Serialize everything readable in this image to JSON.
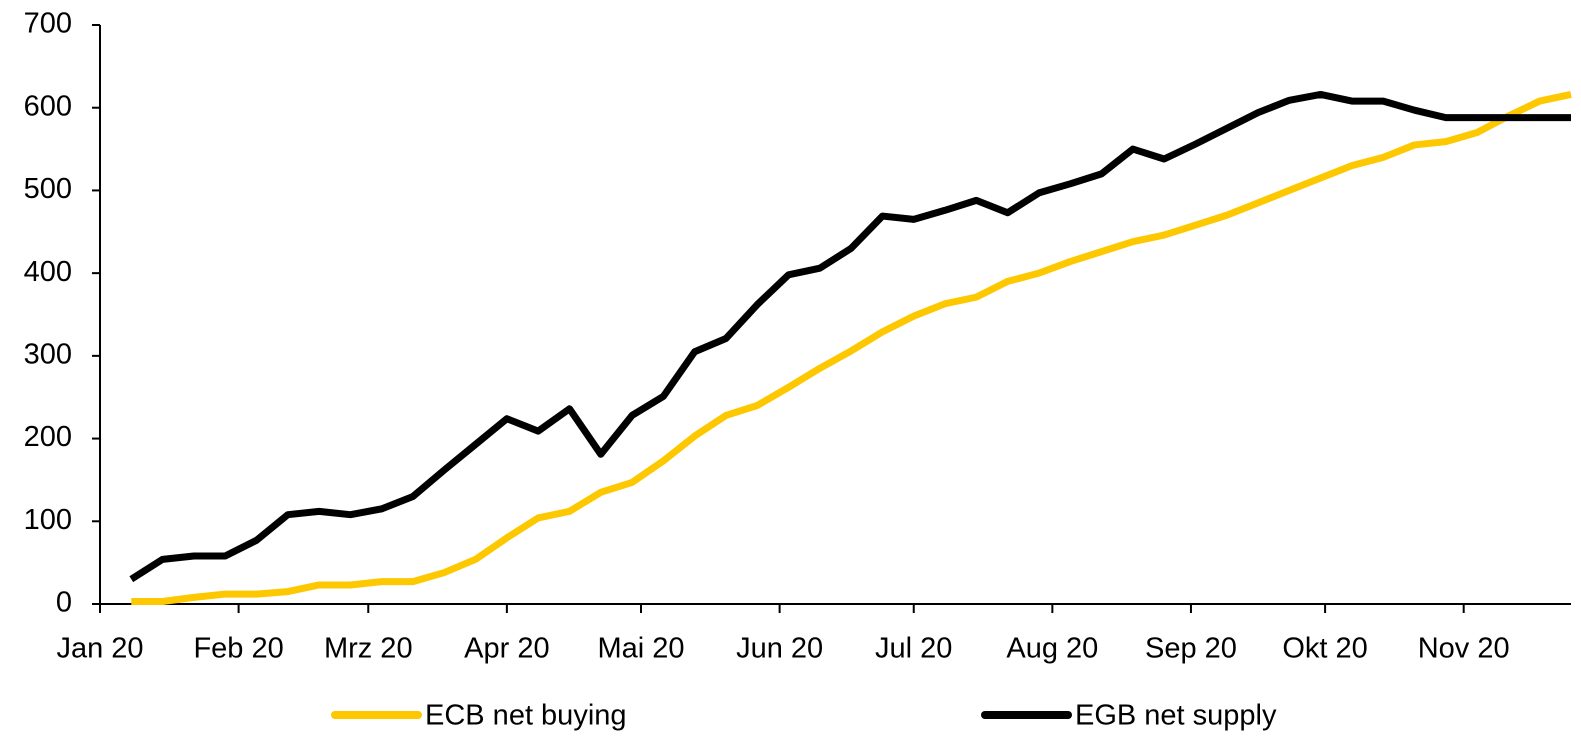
{
  "chart_data": {
    "type": "line",
    "x": [
      7,
      14,
      21,
      28,
      35,
      42,
      49,
      56,
      63,
      70,
      77,
      84,
      91,
      98,
      105,
      112,
      119,
      126,
      133,
      140,
      147,
      154,
      161,
      168,
      175,
      182,
      189,
      196,
      203,
      210,
      217,
      224,
      231,
      238,
      245,
      252,
      259,
      266,
      273,
      280,
      287,
      294,
      301,
      308,
      315,
      322,
      329
    ],
    "series": [
      {
        "name": "ECB net buying",
        "color": "#fdc800",
        "values": [
          3,
          3,
          8,
          12,
          12,
          15,
          23,
          23,
          27,
          27,
          38,
          54,
          80,
          104,
          112,
          135,
          147,
          173,
          203,
          228,
          240,
          262,
          285,
          306,
          329,
          348,
          363,
          371,
          390,
          400,
          414,
          426,
          438,
          446,
          458,
          470,
          485,
          500,
          515,
          530,
          540,
          555,
          559,
          570,
          590,
          608,
          616
        ]
      },
      {
        "name": "EGB net supply",
        "color": "#000000",
        "values": [
          30,
          54,
          58,
          58,
          77,
          108,
          112,
          108,
          115,
          130,
          162,
          193,
          224,
          209,
          236,
          181,
          228,
          251,
          305,
          321,
          362,
          398,
          406,
          430,
          469,
          465,
          476,
          488,
          473,
          497,
          508,
          520,
          550,
          538,
          556,
          575,
          594,
          609,
          616,
          608,
          608,
          597,
          588,
          588,
          588,
          588,
          588
        ]
      }
    ],
    "xlim": [
      0,
      329
    ],
    "xticks": [
      {
        "value": 0,
        "label": "Jan 20"
      },
      {
        "value": 31,
        "label": "Feb 20"
      },
      {
        "value": 60,
        "label": "Mrz 20"
      },
      {
        "value": 91,
        "label": "Apr 20"
      },
      {
        "value": 121,
        "label": "Mai 20"
      },
      {
        "value": 152,
        "label": "Jun 20"
      },
      {
        "value": 182,
        "label": "Jul 20"
      },
      {
        "value": 213,
        "label": "Aug 20"
      },
      {
        "value": 244,
        "label": "Sep 20"
      },
      {
        "value": 274,
        "label": "Okt 20"
      },
      {
        "value": 305,
        "label": "Nov 20"
      }
    ],
    "ylim": [
      0,
      700
    ],
    "yticks": [
      0,
      100,
      200,
      300,
      400,
      500,
      600,
      700
    ],
    "grid": false,
    "legend": "bottom"
  }
}
